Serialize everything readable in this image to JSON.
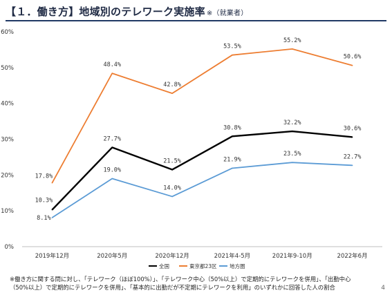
{
  "title": {
    "text": "【１．働き方】地域別のテレワーク実施率",
    "subtitle": "※（就業者）"
  },
  "chart_data": {
    "type": "line",
    "categories": [
      "2019年12月",
      "2020年5月",
      "2020年12月",
      "2021年4-5月",
      "2021年9-10月",
      "2022年6月"
    ],
    "series": [
      {
        "name": "全国",
        "color": "#000000",
        "values": [
          10.3,
          27.7,
          21.5,
          30.8,
          32.2,
          30.6
        ],
        "labels": [
          "10.3%",
          "27.7%",
          "21.5%",
          "30.8%",
          "32.2%",
          "30.6%"
        ]
      },
      {
        "name": "東京都23区",
        "color": "#ed7d31",
        "values": [
          17.8,
          48.4,
          42.8,
          53.5,
          55.2,
          50.6
        ],
        "labels": [
          "17.8%",
          "48.4%",
          "42.8%",
          "53.5%",
          "55.2%",
          "50.6%"
        ]
      },
      {
        "name": "地方圏",
        "color": "#5b9bd5",
        "values": [
          8.1,
          19.0,
          14.0,
          21.9,
          23.5,
          22.7
        ],
        "labels": [
          "8.1%",
          "19.0%",
          "14.0%",
          "21.9%",
          "23.5%",
          "22.7%"
        ]
      }
    ],
    "y_ticks": [
      "0%",
      "10%",
      "20%",
      "30%",
      "40%",
      "50%",
      "60%"
    ],
    "ylim": [
      0,
      60
    ],
    "legend_position": "bottom",
    "grid": false
  },
  "footnote": "※働き方に関する問に対し、「テレワーク（ほぼ100%）」、「テレワーク中心（50%以上）で定期的にテレワークを併用」、「出勤中心（50%以上）で定期的にテレワークを併用」、「基本的に出勤だが不定期にテレワークを利用」のいずれかに回答した人の割合",
  "page_number": "4"
}
